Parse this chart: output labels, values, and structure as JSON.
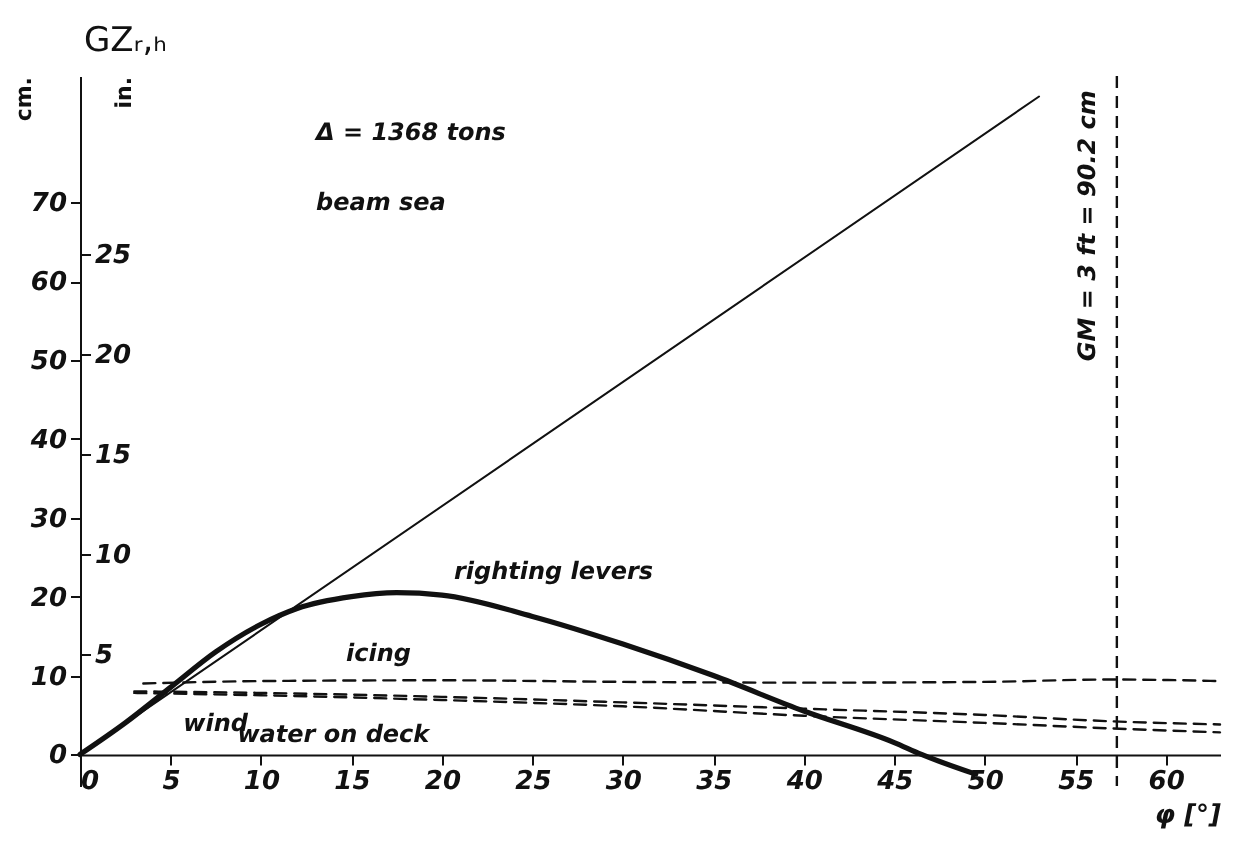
{
  "chart_data": {
    "type": "line",
    "title": "GZᵣ,ₕ",
    "xlabel": "φ [°]",
    "ylabel": "cm.",
    "y2label": "in.",
    "xlim": [
      0,
      63
    ],
    "ylim": [
      -4,
      86
    ],
    "xticks": [
      0,
      5,
      10,
      15,
      20,
      25,
      30,
      35,
      40,
      45,
      50,
      55,
      60
    ],
    "yticks": [
      0,
      10,
      20,
      30,
      40,
      50,
      60,
      70
    ],
    "y2lim": [
      -1.575,
      33.86
    ],
    "y2ticks": [
      5,
      10,
      15,
      20,
      25
    ],
    "series": [
      {
        "color": "#111111",
        "line_style": "solid",
        "x": [
          0,
          2.5,
          5,
          7.5,
          10,
          12,
          15,
          17.5,
          20,
          25,
          30,
          35,
          40,
          45,
          46.5,
          49.5
        ],
        "values": [
          0,
          4,
          8.5,
          13,
          16.5,
          18.5,
          20,
          20.5,
          20.2,
          17.5,
          14,
          10,
          5.5,
          1.5,
          0,
          -2.5
        ]
      },
      {
        "color": "#111111",
        "line_style": "solid",
        "x": [
          0,
          53
        ],
        "values": [
          0,
          83.4
        ]
      },
      {
        "color": "#111111",
        "line_style": "dashed",
        "x": [
          3.5,
          10,
          20,
          30,
          40,
          50,
          57,
          63
        ],
        "values": [
          9,
          9.3,
          9.4,
          9.2,
          9.1,
          9.2,
          9.5,
          9.3
        ]
      },
      {
        "color": "#111111",
        "line_style": "dashed",
        "x": [
          3,
          10,
          20,
          30,
          40,
          50,
          57,
          63
        ],
        "values": [
          8,
          7.8,
          7.3,
          6.6,
          5.8,
          5,
          4.2,
          3.8
        ]
      },
      {
        "color": "#111111",
        "line_style": "dashed",
        "x": [
          3,
          10,
          20,
          30,
          40,
          50,
          57,
          63
        ],
        "values": [
          7.8,
          7.5,
          6.9,
          6.1,
          4.9,
          4,
          3.3,
          2.8
        ]
      }
    ],
    "ref_lines": [
      {
        "axis": "x",
        "value": 57.3,
        "line_style": "dashed",
        "color": "#111111"
      }
    ],
    "annotations": [
      "Δ = 1368 tons",
      "beam sea",
      "GM = 3 ft = 90.2 cm",
      {
        "text": "righting levers",
        "x": 20,
        "y": 20.2
      },
      {
        "text": "icing",
        "x": 16.5,
        "y": 9.3
      },
      {
        "text": "wind",
        "x": 7.5,
        "y": 8
      },
      {
        "text": "water on deck",
        "x": 14,
        "y": 7.2
      }
    ]
  }
}
